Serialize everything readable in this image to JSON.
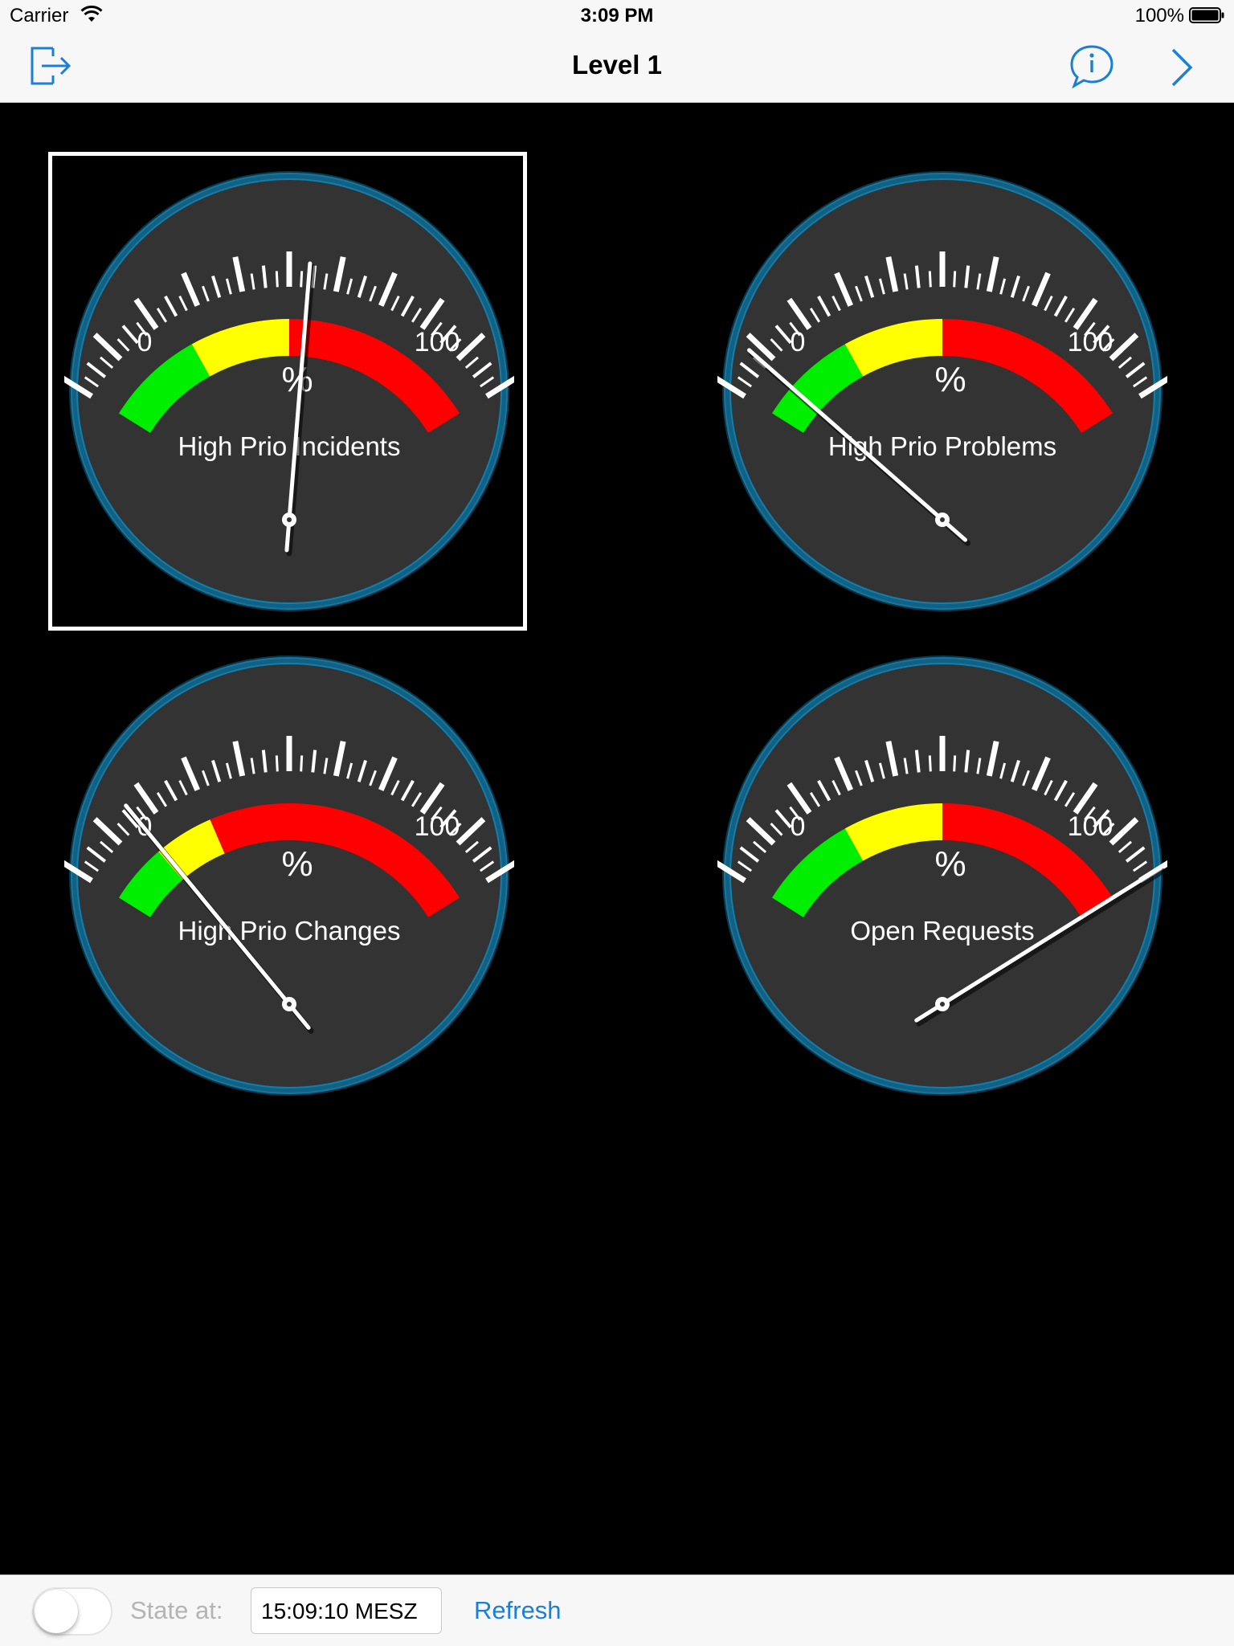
{
  "status_bar": {
    "carrier": "Carrier",
    "time": "3:09 PM",
    "battery": "100%"
  },
  "nav": {
    "title": "Level 1",
    "logout_icon": "logout-icon",
    "info_icon": "info-bubble-icon",
    "forward_icon": "chevron-right-icon",
    "accent": "#1a7fd8"
  },
  "gauges": [
    {
      "label": "High Prio Incidents",
      "value": 54,
      "unit": "%",
      "min": "0",
      "max": "100",
      "selected": true,
      "zones": [
        {
          "from": 0,
          "to": 25,
          "color": "#00ee00"
        },
        {
          "from": 25,
          "to": 50,
          "color": "#ffff00"
        },
        {
          "from": 50,
          "to": 100,
          "color": "#ff0000"
        }
      ]
    },
    {
      "label": "High Prio Problems",
      "value": 8,
      "unit": "%",
      "min": "0",
      "max": "100",
      "selected": false,
      "zones": [
        {
          "from": 0,
          "to": 25,
          "color": "#00ee00"
        },
        {
          "from": 25,
          "to": 50,
          "color": "#ffff00"
        },
        {
          "from": 50,
          "to": 100,
          "color": "#ff0000"
        }
      ]
    },
    {
      "label": "High Prio Changes",
      "value": 16,
      "unit": "%",
      "min": "0",
      "max": "100",
      "selected": false,
      "zones": [
        {
          "from": 0,
          "to": 15,
          "color": "#00ee00"
        },
        {
          "from": 15,
          "to": 30,
          "color": "#ffff00"
        },
        {
          "from": 30,
          "to": 100,
          "color": "#ff0000"
        }
      ]
    },
    {
      "label": "Open Requests",
      "value": 100,
      "unit": "%",
      "min": "0",
      "max": "100",
      "selected": false,
      "zones": [
        {
          "from": 0,
          "to": 25,
          "color": "#00ee00"
        },
        {
          "from": 25,
          "to": 50,
          "color": "#ffff00"
        },
        {
          "from": 50,
          "to": 100,
          "color": "#ff0000"
        }
      ]
    }
  ],
  "footer": {
    "toggle_on": false,
    "state_label": "State at:",
    "time_value": "15:09:10 MESZ",
    "refresh_label": "Refresh"
  },
  "colors": {
    "gauge_face": "#333333",
    "gauge_ring": "#1ea0d8",
    "needle": "#ffffff"
  }
}
